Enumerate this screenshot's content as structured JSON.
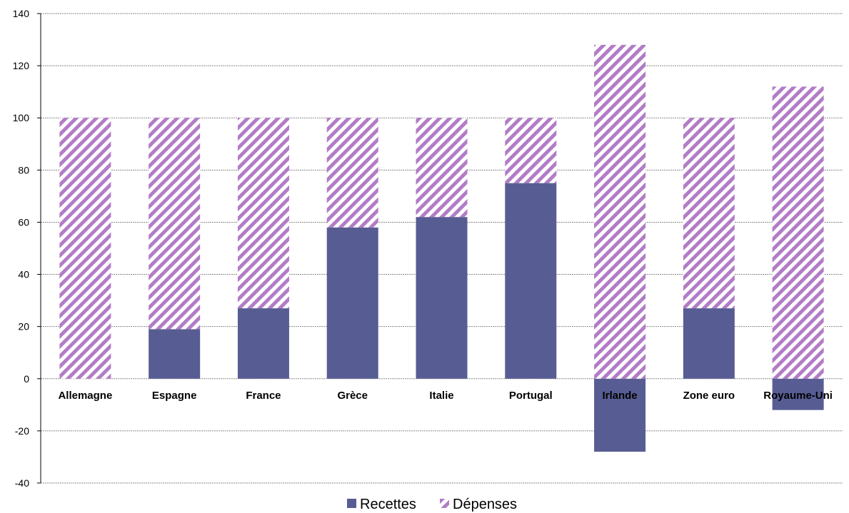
{
  "chart_data": {
    "type": "bar",
    "stacked": true,
    "categories": [
      "Allemagne",
      "Espagne",
      "France",
      "Grèce",
      "Italie",
      "Portugal",
      "Irlande",
      "Zone euro",
      "Royaume-Uni"
    ],
    "series": [
      {
        "name": "Recettes",
        "values": [
          0,
          19,
          27,
          58,
          62,
          75,
          -28,
          27,
          -12
        ],
        "color": "#575d93",
        "pattern": "solid"
      },
      {
        "name": "Dépenses",
        "values": [
          100,
          81,
          73,
          42,
          38,
          25,
          128,
          73,
          112
        ],
        "color": "#b27cc6",
        "pattern": "diagonal-hatch"
      }
    ],
    "ylim": [
      -40,
      140
    ],
    "yticks": [
      "140",
      "120",
      "100",
      "80",
      "60",
      "40",
      "20",
      "0",
      "-20",
      "-40"
    ],
    "ytick_values": [
      140,
      120,
      100,
      80,
      60,
      40,
      20,
      0,
      -20,
      -40
    ],
    "grid": true,
    "legend_position": "bottom-center",
    "title": "",
    "xlabel": "",
    "ylabel": ""
  }
}
